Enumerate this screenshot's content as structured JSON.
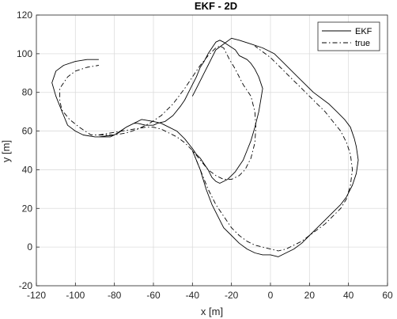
{
  "chart_data": {
    "type": "line",
    "title": "EKF - 2D",
    "xlabel": "x [m]",
    "ylabel": "y [m]",
    "xlim": [
      -120,
      60
    ],
    "ylim": [
      -20,
      120
    ],
    "xticks": [
      -120,
      -100,
      -80,
      -60,
      -40,
      -20,
      0,
      20,
      40,
      60
    ],
    "yticks": [
      -20,
      0,
      20,
      40,
      60,
      80,
      100,
      120
    ],
    "xtick_labels": [
      "-120",
      "-100",
      "-80",
      "-60",
      "-40",
      "-20",
      "0",
      "20",
      "40",
      "60"
    ],
    "ytick_labels": [
      "-20",
      "0",
      "20",
      "40",
      "60",
      "80",
      "100",
      "120"
    ],
    "grid": true,
    "legend_position": "top-right",
    "series": [
      {
        "name": "EKF",
        "style": "solid",
        "color": "#000000",
        "x": [
          -88,
          -80,
          -74,
          -70,
          -66,
          -60,
          -56,
          -52,
          -48,
          -44,
          -40,
          -38,
          -36,
          -34,
          -32,
          -30,
          -28,
          -26,
          -24,
          -22,
          -20,
          -18,
          -16,
          -14,
          -12,
          -10,
          -8,
          -6,
          -5,
          -4,
          -6,
          -8,
          -10,
          -12,
          -16,
          -18,
          -21,
          -24,
          -26,
          -28,
          -30,
          -32,
          -34,
          -36,
          -38,
          -40,
          -42,
          -44,
          -46,
          -50,
          -54,
          -58,
          -60,
          -64,
          -68,
          -70,
          -74,
          -78,
          -82,
          -86,
          -90,
          -96,
          -100,
          -104,
          -106,
          -108,
          -110,
          -112,
          -111,
          -110,
          -106,
          -100,
          -94,
          -88
        ],
        "y": [
          57,
          58,
          62,
          64,
          66,
          65,
          64,
          62,
          60,
          56,
          51,
          48,
          46,
          43,
          40,
          36,
          34,
          33,
          34,
          35,
          37,
          39,
          42,
          45,
          50,
          55,
          62,
          70,
          76,
          82,
          88,
          92,
          95,
          97,
          99,
          102,
          104,
          106,
          107,
          106,
          103,
          100,
          96,
          93,
          88,
          84,
          80,
          76,
          73,
          68,
          65,
          64,
          63,
          63,
          64,
          64,
          62,
          59,
          57,
          57,
          57,
          58,
          60,
          63,
          68,
          73,
          78,
          85,
          88,
          91,
          94,
          96,
          97,
          97
        ]
      },
      {
        "name": "true",
        "style": "dashdot",
        "color": "#000000",
        "x": [
          -88,
          -82,
          -76,
          -70,
          -64,
          -60,
          -56,
          -52,
          -48,
          -44,
          -40,
          -36,
          -32,
          -28,
          -24,
          -20,
          -16,
          -13,
          -10,
          -8,
          -7.5,
          -8,
          -10,
          -14,
          -16,
          -18,
          -21,
          -23,
          -24,
          -26,
          -28,
          -32,
          -36,
          -40,
          -44,
          -50,
          -56,
          -62,
          -68,
          -74,
          -80,
          -86,
          -92,
          -98,
          -103,
          -107,
          -108,
          -108,
          -104,
          -100,
          -94,
          -88
        ],
        "y": [
          58,
          59,
          60,
          61,
          62,
          62,
          61,
          59,
          57,
          54,
          50,
          45,
          40,
          37,
          35,
          35,
          37,
          40,
          46,
          54,
          62,
          70,
          78,
          84,
          88,
          92,
          97,
          101,
          103,
          104,
          103,
          99,
          94,
          88,
          82,
          74,
          68,
          64,
          61,
          59,
          58,
          58,
          58,
          62,
          66,
          71,
          76,
          82,
          88,
          91,
          93,
          94
        ]
      },
      {
        "name": "",
        "style": "solid",
        "color": "#000000",
        "x": [
          -40,
          -36,
          -33,
          -30,
          -27,
          -24,
          -20,
          -16,
          -12,
          -8,
          -4,
          0,
          4,
          8,
          12,
          16,
          20,
          24,
          28,
          32,
          36,
          39,
          42,
          44,
          45,
          44,
          43,
          41,
          38,
          34,
          30,
          26,
          22,
          18,
          14,
          10,
          6,
          2,
          -4,
          -10,
          -16,
          -20,
          -24,
          -28,
          -30,
          -32,
          -34,
          -36,
          -38,
          -40
        ],
        "y": [
          50,
          40,
          30,
          22,
          16,
          10,
          6,
          2,
          -1,
          -3,
          -4,
          -4,
          -5,
          -3,
          -1,
          2,
          6,
          10,
          14,
          18,
          22,
          26,
          32,
          38,
          45,
          52,
          56,
          62,
          66,
          70,
          74,
          77,
          80,
          84,
          88,
          92,
          96,
          100,
          103,
          105,
          107,
          108,
          105,
          102,
          98,
          94,
          90,
          86,
          82,
          78
        ]
      },
      {
        "name": "",
        "style": "dashdot",
        "color": "#000000",
        "x": [
          -40,
          -36,
          -32,
          -28,
          -24,
          -20,
          -16,
          -12,
          -8,
          -4,
          0,
          4,
          8,
          12,
          16,
          20,
          24,
          28,
          32,
          36,
          39,
          41,
          42,
          41,
          39,
          36,
          32,
          28,
          24,
          20,
          16,
          12,
          8,
          4,
          0,
          -4,
          -8
        ],
        "y": [
          50,
          40,
          30,
          22,
          16,
          10,
          6,
          3,
          1,
          0,
          -1,
          -2,
          -1,
          1,
          3,
          6,
          9,
          12,
          16,
          20,
          25,
          32,
          40,
          48,
          54,
          60,
          65,
          70,
          74,
          78,
          82,
          86,
          90,
          94,
          98,
          101,
          104
        ]
      }
    ]
  }
}
